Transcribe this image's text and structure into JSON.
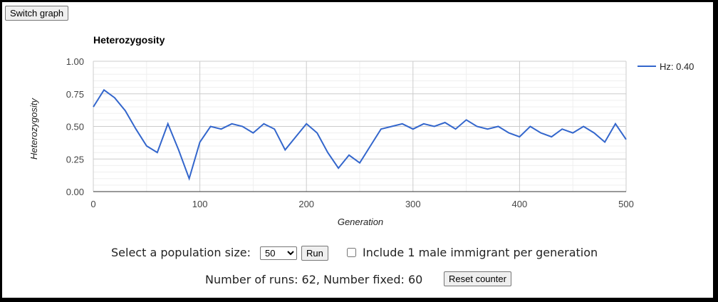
{
  "buttons": {
    "switch_graph": "Switch graph",
    "run": "Run",
    "reset_counter": "Reset counter"
  },
  "controls": {
    "population_label": "Select a population size:",
    "population_selected": "50",
    "immigrant_label": "Include 1 male immigrant per generation",
    "immigrant_checked": false,
    "counter_text": "Number of runs: 62, Number fixed: 60"
  },
  "chart_data": {
    "type": "line",
    "title": "Heterozygosity",
    "xlabel": "Generation",
    "ylabel": "Heterozygosity",
    "xlim": [
      0,
      500
    ],
    "ylim": [
      0,
      1
    ],
    "xticks": [
      "0",
      "100",
      "200",
      "300",
      "400",
      "500"
    ],
    "yticks": [
      "0.00",
      "0.25",
      "0.50",
      "0.75",
      "1.00"
    ],
    "grid": true,
    "legend_position": "right",
    "line_color": "#3366cc",
    "series": [
      {
        "name": "Hz: 0.40",
        "x": [
          0,
          10,
          20,
          30,
          40,
          50,
          60,
          70,
          80,
          90,
          100,
          110,
          120,
          130,
          140,
          150,
          160,
          170,
          180,
          190,
          200,
          210,
          220,
          230,
          240,
          250,
          260,
          270,
          280,
          290,
          300,
          310,
          320,
          330,
          340,
          350,
          360,
          370,
          380,
          390,
          400,
          410,
          420,
          430,
          440,
          450,
          460,
          470,
          480,
          490,
          500
        ],
        "y": [
          0.65,
          0.78,
          0.72,
          0.62,
          0.48,
          0.35,
          0.3,
          0.52,
          0.32,
          0.1,
          0.38,
          0.5,
          0.48,
          0.52,
          0.5,
          0.45,
          0.52,
          0.48,
          0.32,
          0.42,
          0.52,
          0.45,
          0.3,
          0.18,
          0.28,
          0.22,
          0.35,
          0.48,
          0.5,
          0.52,
          0.48,
          0.52,
          0.5,
          0.53,
          0.48,
          0.55,
          0.5,
          0.48,
          0.5,
          0.45,
          0.42,
          0.5,
          0.45,
          0.42,
          0.48,
          0.45,
          0.5,
          0.45,
          0.38,
          0.52,
          0.4
        ]
      }
    ]
  }
}
